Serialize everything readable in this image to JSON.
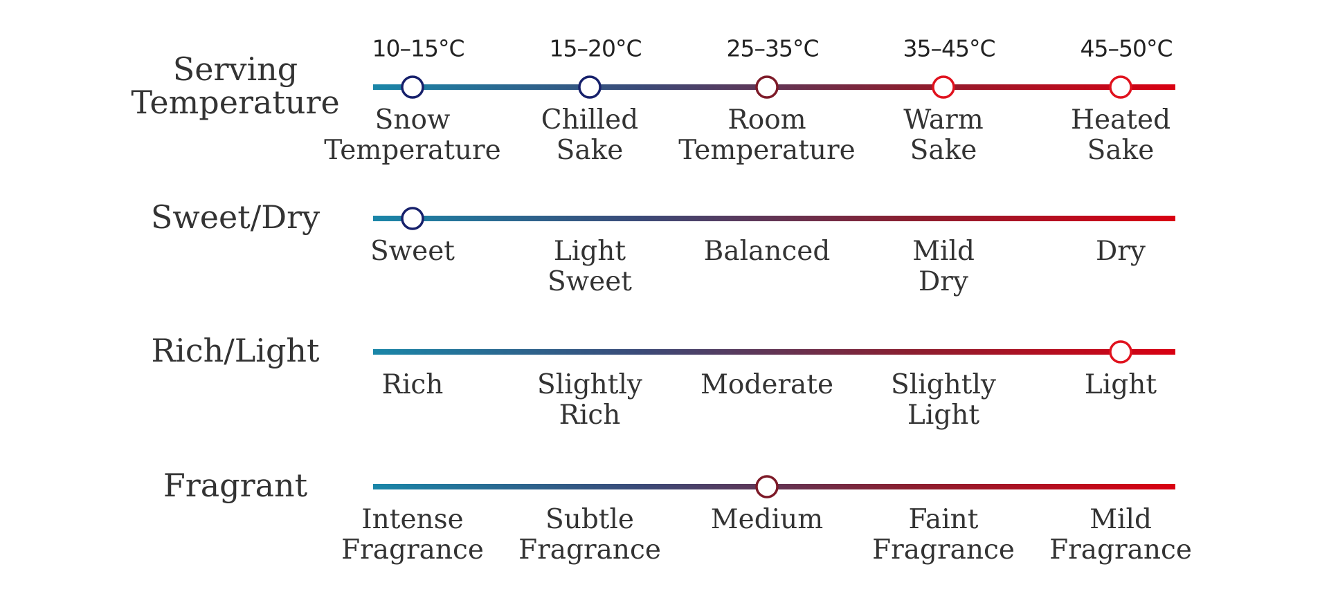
{
  "gradient_colors": [
    "#1a86a8",
    "#3b4a78",
    "#8a1f30",
    "#d90012"
  ],
  "temperature_marker_colors": [
    "#16206b",
    "#16206b",
    "#7d1a28",
    "#e0121e",
    "#e0121e"
  ],
  "selected_marker_colors": [
    "#16206b",
    "#1f3a8a",
    "#7d1a28",
    "#c8141f",
    "#e0121e"
  ],
  "rows": [
    {
      "label": "Serving Temperature",
      "temperatures": [
        "10–15°C",
        "15–20°C",
        "25–35°C",
        "35–45°C",
        "45–50°C"
      ],
      "options": [
        "Snow Temperature",
        "Chilled Sake",
        "Room Temperature",
        "Warm Sake",
        "Heated Sake"
      ]
    },
    {
      "label": "Sweet/Dry",
      "selected": 0,
      "options": [
        "Sweet",
        "Light Sweet",
        "Balanced",
        "Mild Dry",
        "Dry"
      ]
    },
    {
      "label": "Rich/Light",
      "selected": 4,
      "options": [
        "Rich",
        "Slightly Rich",
        "Moderate",
        "Slightly Light",
        "Light"
      ]
    },
    {
      "label": "Fragrant",
      "selected": 2,
      "options": [
        "Intense Fragrance",
        "Subtle Fragrance",
        "Medium",
        "Faint Fragrance",
        "Mild Fragrance"
      ]
    }
  ]
}
